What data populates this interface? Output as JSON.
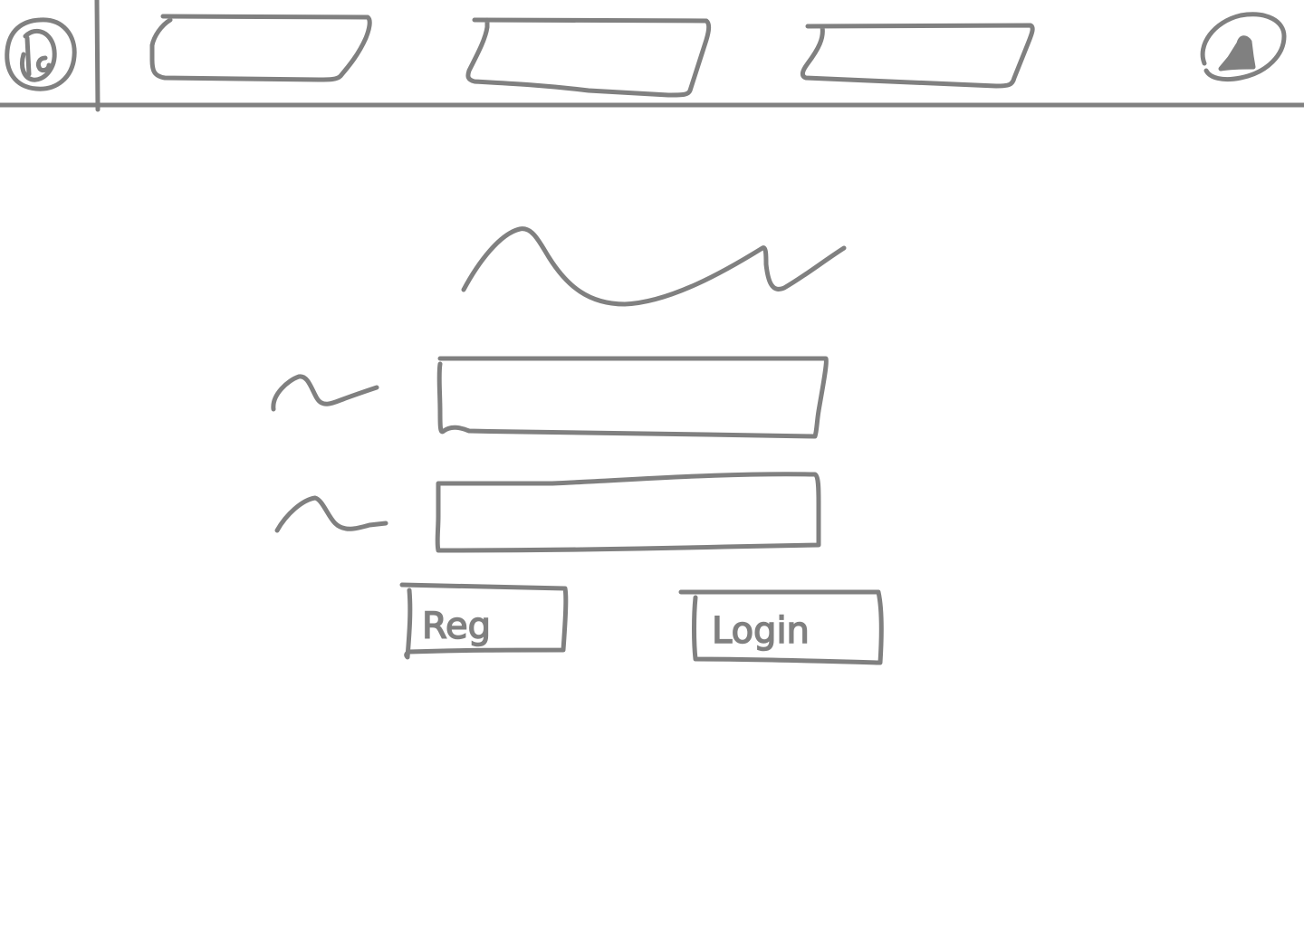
{
  "theme": {
    "stroke_color": "#808080",
    "background_color": "#ffffff"
  },
  "header": {
    "logo_icon": "logo-icon",
    "nav_items": [
      {
        "name": "nav-tab-1",
        "label": ""
      },
      {
        "name": "nav-tab-2",
        "label": ""
      },
      {
        "name": "nav-tab-3",
        "label": ""
      }
    ],
    "account_icon": "user-account-icon"
  },
  "login_form": {
    "title": "",
    "fields": [
      {
        "name": "username-field",
        "label": "",
        "value": "",
        "placeholder": ""
      },
      {
        "name": "password-field",
        "label": "",
        "value": "",
        "placeholder": ""
      }
    ],
    "register_label": "Reg",
    "login_label": "Login"
  }
}
